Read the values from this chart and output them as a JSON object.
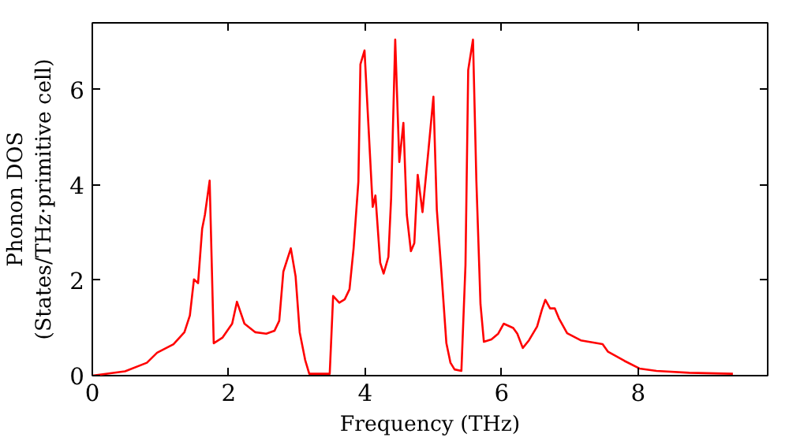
{
  "chart_data": {
    "type": "line",
    "xlabel": "Frequency (THz)",
    "ylabel": "Phonon DOS\n(States/THz·primitive cell)",
    "xlim": [
      0,
      9.9
    ],
    "ylim": [
      0,
      7.4
    ],
    "xticks": [
      0,
      2,
      4,
      6,
      8
    ],
    "yticks": [
      0,
      2,
      4,
      6
    ],
    "grid": false,
    "series": [
      {
        "color": "#ff0000",
        "x": [
          0,
          0.48,
          0.8,
          0.95,
          1.19,
          1.35,
          1.43,
          1.49,
          1.55,
          1.61,
          1.65,
          1.72,
          1.78,
          1.91,
          2.05,
          2.12,
          2.23,
          2.39,
          2.55,
          2.67,
          2.74,
          2.8,
          2.91,
          2.98,
          3.04,
          3.12,
          3.18,
          3.48,
          3.53,
          3.62,
          3.7,
          3.77,
          3.83,
          3.9,
          3.93,
          3.99,
          4.11,
          4.15,
          4.22,
          4.27,
          4.34,
          4.38,
          4.44,
          4.5,
          4.56,
          4.61,
          4.67,
          4.72,
          4.77,
          4.84,
          4.93,
          5.0,
          5.05,
          5.11,
          5.19,
          5.25,
          5.31,
          5.41,
          5.47,
          5.51,
          5.58,
          5.63,
          5.69,
          5.74,
          5.85,
          5.95,
          6.03,
          6.17,
          6.23,
          6.31,
          6.4,
          6.52,
          6.59,
          6.64,
          6.71,
          6.78,
          6.84,
          6.96,
          7.16,
          7.48,
          7.56,
          7.8,
          8.02,
          8.27,
          8.75,
          9.39
        ],
        "values": [
          0,
          0.09,
          0.27,
          0.48,
          0.66,
          0.91,
          1.26,
          2.02,
          1.94,
          3.08,
          3.37,
          4.09,
          0.68,
          0.8,
          1.09,
          1.55,
          1.09,
          0.91,
          0.88,
          0.94,
          1.15,
          2.18,
          2.67,
          2.08,
          0.91,
          0.33,
          0.04,
          0.04,
          1.67,
          1.53,
          1.6,
          1.81,
          2.67,
          4.07,
          6.53,
          6.82,
          3.54,
          3.78,
          2.37,
          2.14,
          2.49,
          3.72,
          7.05,
          4.48,
          5.3,
          3.37,
          2.61,
          2.78,
          4.21,
          3.43,
          4.77,
          5.85,
          3.48,
          2.32,
          0.68,
          0.27,
          0.13,
          0.1,
          2.32,
          6.41,
          7.05,
          4.07,
          1.5,
          0.71,
          0.76,
          0.88,
          1.09,
          1.0,
          0.88,
          0.58,
          0.74,
          1.03,
          1.38,
          1.59,
          1.41,
          1.41,
          1.2,
          0.89,
          0.74,
          0.66,
          0.5,
          0.31,
          0.15,
          0.1,
          0.06,
          0.04
        ]
      }
    ]
  }
}
